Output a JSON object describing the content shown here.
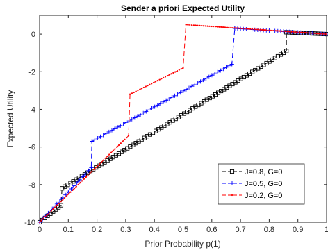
{
  "chart_data": {
    "type": "line",
    "title": "Sender a priori Expected Utility",
    "xlabel": "Prior Probability p(1)",
    "ylabel": "Expected Utility",
    "xlim": [
      0,
      1
    ],
    "ylim": [
      -10,
      1
    ],
    "xticks": [
      0,
      0.1,
      0.2,
      0.3,
      0.4,
      0.5,
      0.6,
      0.7,
      0.8,
      0.9,
      1
    ],
    "xtick_labels": [
      "0",
      "0.1",
      "0.2",
      "0.3",
      "0.4",
      "0.5",
      "0.6",
      "0.7",
      "0.8",
      "0.9",
      "1"
    ],
    "yticks": [
      -10,
      -8,
      -6,
      -4,
      -2,
      0
    ],
    "ytick_labels": [
      "-10",
      "-8",
      "-6",
      "-4",
      "-2",
      "0"
    ],
    "grid": false,
    "legend_position": "lower-right",
    "series": [
      {
        "name": "J=0.8, G=0",
        "color": "#000000",
        "marker": "square",
        "points": [
          [
            0.0,
            -10.0
          ],
          [
            0.075,
            -9.1
          ],
          [
            0.078,
            -8.2
          ],
          [
            0.86,
            -0.9
          ],
          [
            0.86,
            0.1
          ],
          [
            1.0,
            0.0
          ]
        ]
      },
      {
        "name": "J=0.5, G=0",
        "color": "#0000ff",
        "marker": "plus",
        "points": [
          [
            0.0,
            -10.0
          ],
          [
            0.18,
            -7.1
          ],
          [
            0.182,
            -5.7
          ],
          [
            0.67,
            -1.6
          ],
          [
            0.68,
            0.3
          ],
          [
            1.0,
            0.0
          ]
        ]
      },
      {
        "name": "J=0.2, G=0",
        "color": "#ff0000",
        "marker": "dot",
        "points": [
          [
            0.0,
            -10.0
          ],
          [
            0.31,
            -5.4
          ],
          [
            0.315,
            -3.2
          ],
          [
            0.5,
            -1.8
          ],
          [
            0.51,
            0.5
          ],
          [
            1.0,
            0.0
          ]
        ]
      }
    ]
  }
}
